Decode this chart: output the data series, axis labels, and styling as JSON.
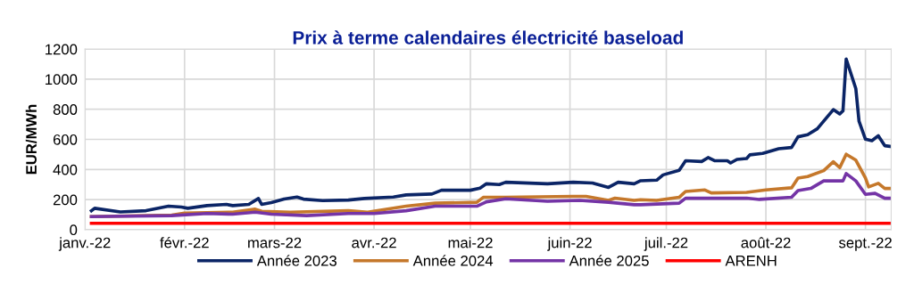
{
  "chart_data": {
    "type": "line",
    "title": "Prix à terme calendaires électricité baseload",
    "ylabel": "EUR/MWh",
    "xlim": [
      "2022-01-01",
      "2022-09-09"
    ],
    "ylim": [
      0,
      1200
    ],
    "yticks": [
      0,
      200,
      400,
      600,
      800,
      1000,
      1200
    ],
    "xticks": [
      {
        "value": "2022-01-01",
        "label": "janv.-22"
      },
      {
        "value": "2022-02-01",
        "label": "févr.-22"
      },
      {
        "value": "2022-03-01",
        "label": "mars-22"
      },
      {
        "value": "2022-04-01",
        "label": "avr.-22"
      },
      {
        "value": "2022-05-01",
        "label": "mai-22"
      },
      {
        "value": "2022-06-01",
        "label": "juin-22"
      },
      {
        "value": "2022-07-01",
        "label": "juil.-22"
      },
      {
        "value": "2022-08-01",
        "label": "août-22"
      },
      {
        "value": "2022-09-01",
        "label": "sept.-22"
      }
    ],
    "grid": true,
    "legend": "bottom",
    "marker": "none",
    "line_style": "solid",
    "series": [
      {
        "name": "Année 2023",
        "color": "#0b2566",
        "x": [
          "2022-01-03",
          "2022-01-04",
          "2022-01-12",
          "2022-01-20",
          "2022-01-27",
          "2022-01-31",
          "2022-02-02",
          "2022-02-08",
          "2022-02-14",
          "2022-02-16",
          "2022-02-21",
          "2022-02-24",
          "2022-02-25",
          "2022-02-28",
          "2022-03-04",
          "2022-03-08",
          "2022-03-10",
          "2022-03-16",
          "2022-03-24",
          "2022-03-29",
          "2022-04-07",
          "2022-04-11",
          "2022-04-19",
          "2022-04-22",
          "2022-05-01",
          "2022-05-04",
          "2022-05-06",
          "2022-05-10",
          "2022-05-12",
          "2022-05-25",
          "2022-06-02",
          "2022-06-08",
          "2022-06-13",
          "2022-06-16",
          "2022-06-21",
          "2022-06-23",
          "2022-06-28",
          "2022-06-30",
          "2022-07-05",
          "2022-07-07",
          "2022-07-12",
          "2022-07-14",
          "2022-07-16",
          "2022-07-20",
          "2022-07-21",
          "2022-07-23",
          "2022-07-26",
          "2022-07-27",
          "2022-07-31",
          "2022-08-05",
          "2022-08-09",
          "2022-08-11",
          "2022-08-14",
          "2022-08-17",
          "2022-08-22",
          "2022-08-24",
          "2022-08-25",
          "2022-08-26",
          "2022-08-29",
          "2022-08-30",
          "2022-09-01",
          "2022-09-03",
          "2022-09-05",
          "2022-09-07",
          "2022-09-09"
        ],
        "values": [
          126,
          142,
          118,
          126,
          156,
          150,
          142,
          160,
          168,
          160,
          168,
          207,
          168,
          180,
          203,
          217,
          203,
          193,
          197,
          207,
          217,
          231,
          237,
          262,
          262,
          276,
          305,
          300,
          315,
          305,
          315,
          310,
          281,
          315,
          305,
          325,
          329,
          364,
          394,
          458,
          453,
          479,
          458,
          458,
          443,
          467,
          473,
          497,
          507,
          538,
          546,
          617,
          631,
          670,
          798,
          769,
          789,
          1134,
          937,
          720,
          601,
          591,
          624,
          558,
          552
        ]
      },
      {
        "name": "Année 2024",
        "color": "#c5782b",
        "x": [
          "2022-01-03",
          "2022-01-28",
          "2022-02-01",
          "2022-02-16",
          "2022-02-23",
          "2022-02-25",
          "2022-03-06",
          "2022-03-24",
          "2022-03-30",
          "2022-04-11",
          "2022-04-20",
          "2022-05-03",
          "2022-05-05",
          "2022-05-12",
          "2022-06-02",
          "2022-06-06",
          "2022-06-13",
          "2022-06-15",
          "2022-06-21",
          "2022-06-23",
          "2022-06-28",
          "2022-07-05",
          "2022-07-07",
          "2022-07-13",
          "2022-07-15",
          "2022-07-26",
          "2022-08-01",
          "2022-08-09",
          "2022-08-11",
          "2022-08-14",
          "2022-08-19",
          "2022-08-22",
          "2022-08-24",
          "2022-08-26",
          "2022-08-29",
          "2022-09-01",
          "2022-09-02",
          "2022-09-05",
          "2022-09-07",
          "2022-09-09"
        ],
        "values": [
          87,
          97,
          110,
          116,
          136,
          122,
          116,
          126,
          116,
          156,
          176,
          182,
          215,
          215,
          221,
          221,
          195,
          209,
          195,
          199,
          195,
          215,
          254,
          264,
          244,
          248,
          264,
          278,
          343,
          353,
          392,
          451,
          412,
          501,
          462,
          343,
          284,
          308,
          274,
          274
        ]
      },
      {
        "name": "Année 2025",
        "color": "#7434a6",
        "x": [
          "2022-01-03",
          "2022-01-28",
          "2022-02-08",
          "2022-02-16",
          "2022-02-23",
          "2022-02-28",
          "2022-03-11",
          "2022-03-24",
          "2022-04-01",
          "2022-04-11",
          "2022-04-20",
          "2022-05-03",
          "2022-05-06",
          "2022-05-12",
          "2022-05-25",
          "2022-06-04",
          "2022-06-13",
          "2022-06-21",
          "2022-06-23",
          "2022-07-05",
          "2022-07-07",
          "2022-07-26",
          "2022-07-30",
          "2022-08-09",
          "2022-08-11",
          "2022-08-15",
          "2022-08-19",
          "2022-08-25",
          "2022-08-26",
          "2022-08-29",
          "2022-09-01",
          "2022-09-04",
          "2022-09-07",
          "2022-09-09"
        ],
        "values": [
          87,
          93,
          107,
          103,
          116,
          103,
          93,
          107,
          107,
          126,
          156,
          156,
          185,
          205,
          189,
          195,
          182,
          166,
          166,
          176,
          209,
          209,
          201,
          215,
          260,
          274,
          324,
          324,
          373,
          324,
          235,
          241,
          209,
          209
        ]
      },
      {
        "name": "ARENH",
        "color": "#ff0000",
        "x": [
          "2022-01-03",
          "2022-09-09"
        ],
        "values": [
          42,
          42
        ]
      }
    ]
  }
}
